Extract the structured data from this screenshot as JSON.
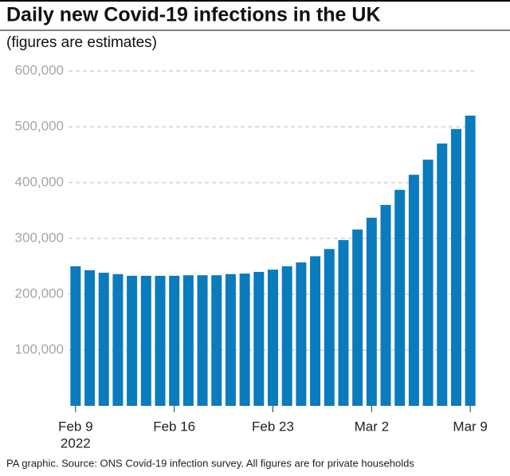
{
  "chart_data": {
    "type": "bar",
    "title": "Daily new Covid-19 infections in the UK",
    "subtitle": "(figures are estimates)",
    "source": "PA graphic. Source: ONS Covid-19 infection survey. All figures are for private households",
    "year_label": "2022",
    "categories": [
      "Feb 9",
      null,
      null,
      null,
      null,
      null,
      null,
      "Feb 16",
      null,
      null,
      null,
      null,
      null,
      null,
      "Feb 23",
      null,
      null,
      null,
      null,
      null,
      null,
      "Mar 2",
      null,
      null,
      null,
      null,
      null,
      null,
      "Mar 9"
    ],
    "values": [
      250000,
      243000,
      238500,
      236000,
      233000,
      233000,
      233000,
      233000,
      234000,
      234000,
      234000,
      236000,
      237000,
      240000,
      244000,
      250000,
      257000,
      268000,
      281000,
      297000,
      316000,
      337000,
      360000,
      387000,
      414000,
      441000,
      470000,
      496000,
      520000
    ],
    "color": "#0a7bbd",
    "ylim": [
      0,
      600000
    ],
    "yticks": [
      {
        "value": 100000,
        "label": "100,000"
      },
      {
        "value": 200000,
        "label": "200,000"
      },
      {
        "value": 300000,
        "label": "300,000"
      },
      {
        "value": 400000,
        "label": "400,000"
      },
      {
        "value": 500000,
        "label": "500,000"
      },
      {
        "value": 600000,
        "label": "600,000"
      }
    ],
    "grid": true
  }
}
